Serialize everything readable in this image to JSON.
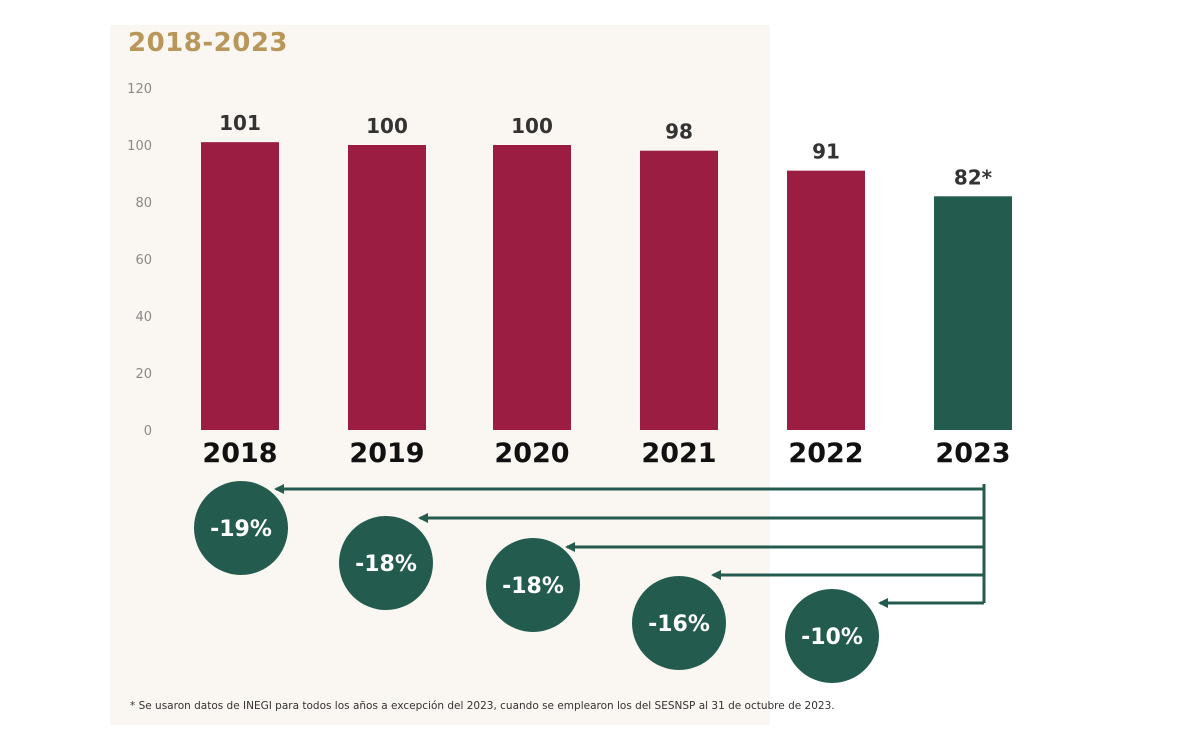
{
  "colors": {
    "bar_main": "#9b1e42",
    "bar_highlight": "#235b4e",
    "circle": "#235b4e",
    "arrow": "#235b4e",
    "title": "#b9975b",
    "tick": "#8a8a8a",
    "value_label": "#333333",
    "category_label": "#111111"
  },
  "chart_data": {
    "type": "bar",
    "title": "2018-2023",
    "categories": [
      "2018",
      "2019",
      "2020",
      "2021",
      "2022",
      "2023"
    ],
    "values": [
      101,
      100,
      100,
      98,
      91,
      82
    ],
    "value_labels": [
      "101",
      "100",
      "100",
      "98",
      "91",
      "82*"
    ],
    "highlight_index": 5,
    "ylim": [
      0,
      120
    ],
    "yticks": [
      0,
      20,
      40,
      60,
      80,
      100,
      120
    ],
    "xlabel": "",
    "ylabel": "",
    "grid": false,
    "annotations": {
      "type": "percent-change-vs-2023",
      "labels": [
        "-19%",
        "-18%",
        "-18%",
        "-16%",
        "-10%"
      ],
      "values": [
        -19,
        -18,
        -18,
        -16,
        -10
      ],
      "compare_to": "2023"
    },
    "footnote": "* Se usaron datos de INEGI para todos los años a excepción del 2023, cuando se emplearon los del SESNSP al 31 de octubre de 2023."
  }
}
